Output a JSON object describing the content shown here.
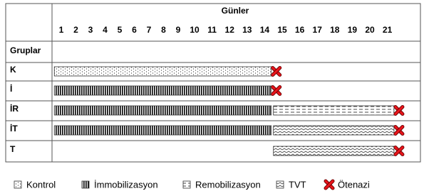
{
  "header": {
    "title": "Günler",
    "days": [
      1,
      2,
      3,
      4,
      5,
      6,
      7,
      8,
      9,
      10,
      11,
      12,
      13,
      14,
      15,
      16,
      17,
      18,
      19,
      20,
      21
    ]
  },
  "groups_label": "Gruplar",
  "groups": [
    {
      "label": "K",
      "segments": [
        {
          "from": 1,
          "to": 14,
          "pattern": "dots"
        }
      ],
      "end_marker": "cross"
    },
    {
      "label": "İ",
      "segments": [
        {
          "from": 1,
          "to": 14,
          "pattern": "vstripes"
        }
      ],
      "end_marker": "cross"
    },
    {
      "label": "İR",
      "segments": [
        {
          "from": 1,
          "to": 14,
          "pattern": "vstripes"
        },
        {
          "from": 15,
          "to": 21,
          "pattern": "dashes"
        }
      ],
      "end_marker": "cross"
    },
    {
      "label": "İT",
      "segments": [
        {
          "from": 1,
          "to": 14,
          "pattern": "vstripes"
        },
        {
          "from": 15,
          "to": 21,
          "pattern": "zigzag"
        }
      ],
      "end_marker": "cross"
    },
    {
      "label": "T",
      "segments": [
        {
          "from": 15,
          "to": 21,
          "pattern": "zigzag"
        }
      ],
      "end_marker": "cross"
    }
  ],
  "legend": [
    {
      "label": "Kontrol",
      "pattern": "dots"
    },
    {
      "label": "İmmobilizasyon",
      "pattern": "vstripes"
    },
    {
      "label": "Remobilizasyon",
      "pattern": "dashes"
    },
    {
      "label": "TVT",
      "pattern": "zigzag"
    },
    {
      "label": "Ötenazi",
      "pattern": "cross"
    }
  ]
}
